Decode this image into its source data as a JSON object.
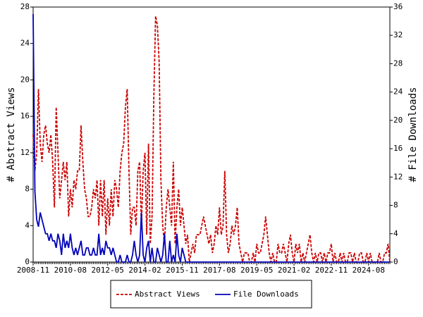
{
  "chart_data": {
    "type": "line",
    "ylabel": "# Abstract Views",
    "y2label": "# File Downloads",
    "ylim": [
      0,
      28
    ],
    "yticks": [
      0,
      4,
      8,
      12,
      16,
      20,
      24,
      28
    ],
    "y2lim": [
      0,
      36
    ],
    "y2ticks": [
      0,
      4,
      8,
      12,
      16,
      20,
      24,
      28,
      32,
      36
    ],
    "legend": "bottom",
    "categories": [
      "2008-11",
      null,
      null,
      null,
      null,
      null,
      null,
      null,
      null,
      null,
      null,
      null,
      null,
      null,
      null,
      null,
      null,
      null,
      null,
      null,
      null,
      "2010-08",
      null,
      null,
      null,
      null,
      null,
      null,
      null,
      null,
      null,
      null,
      null,
      null,
      null,
      null,
      null,
      null,
      null,
      null,
      null,
      null,
      "2012-05",
      null,
      null,
      null,
      null,
      null,
      null,
      null,
      null,
      null,
      null,
      null,
      null,
      null,
      null,
      null,
      null,
      null,
      null,
      null,
      null,
      "2014-02",
      null,
      null,
      null,
      null,
      null,
      null,
      null,
      null,
      null,
      null,
      null,
      null,
      null,
      null,
      null,
      null,
      null,
      null,
      null,
      null,
      "2015-11",
      null,
      null,
      null,
      null,
      null,
      null,
      null,
      null,
      null,
      null,
      null,
      null,
      null,
      null,
      null,
      null,
      null,
      null,
      null,
      null,
      "2017-08",
      null,
      null,
      null,
      null,
      null,
      null,
      null,
      null,
      null,
      null,
      null,
      null,
      null,
      null,
      null,
      null,
      null,
      null,
      null,
      null,
      "2019-05",
      null,
      null,
      null,
      null,
      null,
      null,
      null,
      null,
      null,
      null,
      null,
      null,
      null,
      null,
      null,
      null,
      null,
      null,
      null,
      null,
      "2021-02",
      null,
      null,
      null,
      null,
      null,
      null,
      null,
      null,
      null,
      null,
      null,
      null,
      null,
      null,
      null,
      null,
      null,
      null,
      null,
      null,
      "2022-11",
      null,
      null,
      null,
      null,
      null,
      null,
      null,
      null,
      null,
      null,
      null,
      null,
      null,
      null,
      null,
      null,
      null,
      null,
      null,
      null,
      "2024-08",
      null,
      null,
      null,
      null,
      null,
      null,
      null,
      null,
      null,
      null,
      null,
      null
    ],
    "series": [
      {
        "name": "Abstract Views",
        "color": "#cc0000",
        "dash": true,
        "values": [
          14,
          10,
          12,
          19,
          13,
          11,
          14,
          15,
          13,
          12,
          14,
          11,
          6,
          17,
          12,
          7,
          9,
          11,
          9,
          11,
          5,
          8,
          6,
          9,
          8,
          10,
          10,
          15,
          11,
          8,
          7,
          5,
          5,
          6,
          8,
          7,
          9,
          4,
          9,
          5,
          9,
          3,
          7,
          4,
          8,
          5,
          9,
          8,
          6,
          10,
          12,
          13,
          17,
          19,
          10,
          3,
          6,
          6,
          4,
          10,
          11,
          4,
          10,
          12,
          3,
          13,
          2,
          5,
          18,
          27,
          26,
          22,
          9,
          4,
          2,
          6,
          8,
          6,
          4,
          11,
          2,
          6,
          8,
          4,
          6,
          4,
          2,
          3,
          0,
          1,
          2,
          1,
          3,
          3,
          3,
          4,
          5,
          4,
          3,
          2,
          3,
          1,
          2,
          4,
          3,
          6,
          3,
          4,
          10,
          3,
          1,
          2,
          4,
          3,
          4,
          6,
          2,
          1,
          0,
          1,
          1,
          1,
          0,
          0,
          1,
          0,
          2,
          1,
          1,
          2,
          3,
          5,
          3,
          1,
          0,
          1,
          0,
          0,
          2,
          1,
          1,
          2,
          1,
          0,
          2,
          3,
          1,
          0,
          2,
          1,
          2,
          0,
          1,
          0,
          1,
          2,
          3,
          1,
          0,
          1,
          0,
          1,
          1,
          0,
          1,
          0,
          1,
          1,
          2,
          0,
          1,
          0,
          0,
          1,
          0,
          1,
          0,
          0,
          1,
          1,
          0,
          1,
          0,
          0,
          1,
          1,
          0,
          0,
          1,
          0,
          1,
          0,
          0,
          0,
          0,
          1,
          0,
          0,
          1,
          1,
          2,
          0
        ]
      },
      {
        "name": "File Downloads",
        "color": "#0000bb",
        "dash": false,
        "axis": "y2",
        "values": [
          35,
          10,
          6,
          5,
          7,
          6,
          5,
          4,
          4,
          3,
          4,
          3,
          3,
          2,
          4,
          3,
          1,
          4,
          2,
          3,
          2,
          4,
          2,
          1,
          2,
          1,
          2,
          3,
          1,
          1,
          2,
          2,
          1,
          1,
          2,
          1,
          1,
          4,
          1,
          2,
          1,
          3,
          2,
          2,
          1,
          2,
          1,
          0,
          0,
          1,
          0,
          0,
          0,
          1,
          0,
          0,
          1,
          3,
          1,
          0,
          1,
          7,
          1,
          0,
          2,
          3,
          0,
          2,
          0,
          0,
          2,
          1,
          0,
          1,
          4,
          0,
          0,
          3,
          0,
          1,
          0,
          4,
          1,
          0,
          2,
          1,
          0,
          0,
          0,
          0,
          0,
          0,
          0,
          0,
          0,
          0,
          0,
          0,
          0,
          0,
          0,
          0,
          0,
          0,
          0,
          0,
          0,
          0,
          0,
          0,
          0,
          0,
          0,
          0,
          0,
          0,
          0,
          0,
          0,
          0,
          0,
          0,
          0,
          0,
          0,
          0,
          0,
          0,
          0,
          0,
          0,
          0,
          0,
          0,
          0,
          0,
          0,
          0,
          0,
          0,
          0,
          0,
          0,
          0,
          0,
          0,
          0,
          0,
          0,
          0,
          0,
          0,
          0,
          0,
          0,
          0,
          0,
          0,
          0,
          0,
          0,
          0,
          0,
          0,
          0,
          0,
          0,
          0,
          0,
          0,
          0,
          0,
          0,
          0,
          0,
          0,
          0,
          0,
          0,
          0,
          0,
          0,
          0,
          0,
          0,
          0,
          0,
          0,
          0,
          0,
          0,
          0,
          0,
          0,
          0,
          0,
          0,
          0,
          0,
          0,
          0,
          0
        ]
      }
    ]
  }
}
